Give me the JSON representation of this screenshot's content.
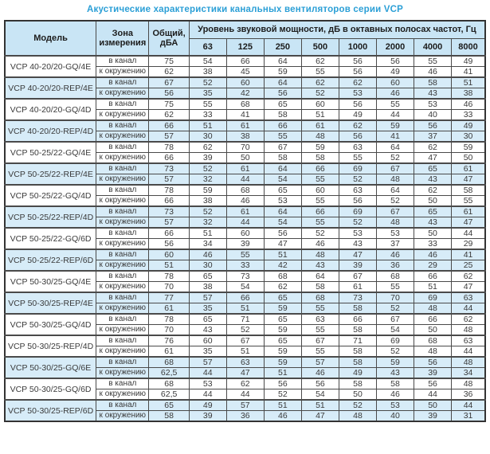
{
  "title": "Акустические характеристики канальных вентиляторов  серии VCP",
  "table": {
    "headers": {
      "model": "Модель",
      "zone": "Зона\nизмерения",
      "total": "Общий,\nдБА",
      "band_group": "Уровень звуковой мощности, дБ в октавных полосах частот, Гц",
      "frequencies": [
        "63",
        "125",
        "250",
        "500",
        "1000",
        "2000",
        "4000",
        "8000"
      ]
    },
    "zone_labels": {
      "duct": "в канал",
      "ambient": "к окружению"
    },
    "rows": [
      {
        "model": "VCP 40-20/20-GQ/4E",
        "highlighted": false,
        "duct": {
          "total": "75",
          "bands": [
            "54",
            "66",
            "64",
            "62",
            "56",
            "56",
            "55",
            "49"
          ]
        },
        "ambient": {
          "total": "62",
          "bands": [
            "38",
            "45",
            "59",
            "55",
            "56",
            "49",
            "46",
            "41"
          ]
        }
      },
      {
        "model": "VCP 40-20/20-REP/4E",
        "highlighted": true,
        "duct": {
          "total": "67",
          "bands": [
            "52",
            "60",
            "64",
            "62",
            "62",
            "60",
            "58",
            "51"
          ]
        },
        "ambient": {
          "total": "56",
          "bands": [
            "35",
            "42",
            "56",
            "52",
            "53",
            "46",
            "43",
            "38"
          ]
        }
      },
      {
        "model": "VCP 40-20/20-GQ/4D",
        "highlighted": false,
        "duct": {
          "total": "75",
          "bands": [
            "55",
            "68",
            "65",
            "60",
            "56",
            "55",
            "53",
            "46"
          ]
        },
        "ambient": {
          "total": "62",
          "bands": [
            "33",
            "41",
            "58",
            "51",
            "49",
            "44",
            "40",
            "33"
          ]
        }
      },
      {
        "model": "VCP 40-20/20-REP/4D",
        "highlighted": true,
        "duct": {
          "total": "66",
          "bands": [
            "51",
            "61",
            "66",
            "61",
            "62",
            "59",
            "56",
            "49"
          ]
        },
        "ambient": {
          "total": "57",
          "bands": [
            "30",
            "38",
            "55",
            "48",
            "56",
            "41",
            "37",
            "30"
          ]
        }
      },
      {
        "model": "VCP 50-25/22-GQ/4E",
        "highlighted": false,
        "duct": {
          "total": "78",
          "bands": [
            "62",
            "70",
            "67",
            "59",
            "63",
            "64",
            "62",
            "59"
          ]
        },
        "ambient": {
          "total": "66",
          "bands": [
            "39",
            "50",
            "58",
            "58",
            "55",
            "52",
            "47",
            "50"
          ]
        }
      },
      {
        "model": "VCP 50-25/22-REP/4E",
        "highlighted": true,
        "duct": {
          "total": "73",
          "bands": [
            "52",
            "61",
            "64",
            "66",
            "69",
            "67",
            "65",
            "61"
          ]
        },
        "ambient": {
          "total": "57",
          "bands": [
            "32",
            "44",
            "54",
            "55",
            "52",
            "48",
            "43",
            "47"
          ]
        }
      },
      {
        "model": "VCP 50-25/22-GQ/4D",
        "highlighted": false,
        "duct": {
          "total": "78",
          "bands": [
            "59",
            "68",
            "65",
            "60",
            "63",
            "64",
            "62",
            "58"
          ]
        },
        "ambient": {
          "total": "66",
          "bands": [
            "38",
            "46",
            "53",
            "55",
            "56",
            "52",
            "50",
            "55"
          ]
        }
      },
      {
        "model": "VCP 50-25/22-REP/4D",
        "highlighted": true,
        "duct": {
          "total": "73",
          "bands": [
            "52",
            "61",
            "64",
            "66",
            "69",
            "67",
            "65",
            "61"
          ]
        },
        "ambient": {
          "total": "57",
          "bands": [
            "32",
            "44",
            "54",
            "55",
            "52",
            "48",
            "43",
            "47"
          ]
        }
      },
      {
        "model": "VCP 50-25/22-GQ/6D",
        "highlighted": false,
        "duct": {
          "total": "66",
          "bands": [
            "51",
            "60",
            "56",
            "52",
            "53",
            "53",
            "50",
            "44"
          ]
        },
        "ambient": {
          "total": "56",
          "bands": [
            "34",
            "39",
            "47",
            "46",
            "43",
            "37",
            "33",
            "29"
          ]
        }
      },
      {
        "model": "VCP 50-25/22-REP/6D",
        "highlighted": true,
        "duct": {
          "total": "60",
          "bands": [
            "46",
            "55",
            "51",
            "48",
            "47",
            "46",
            "46",
            "41"
          ]
        },
        "ambient": {
          "total": "51",
          "bands": [
            "30",
            "33",
            "42",
            "43",
            "39",
            "36",
            "29",
            "25"
          ]
        }
      },
      {
        "model": "VCP 50-30/25-GQ/4E",
        "highlighted": false,
        "duct": {
          "total": "78",
          "bands": [
            "65",
            "73",
            "68",
            "64",
            "67",
            "68",
            "66",
            "62"
          ]
        },
        "ambient": {
          "total": "70",
          "bands": [
            "38",
            "54",
            "62",
            "58",
            "61",
            "55",
            "51",
            "47"
          ]
        }
      },
      {
        "model": "VCP 50-30/25-REP/4E",
        "highlighted": true,
        "duct": {
          "total": "77",
          "bands": [
            "57",
            "66",
            "65",
            "68",
            "73",
            "70",
            "69",
            "63"
          ]
        },
        "ambient": {
          "total": "61",
          "bands": [
            "35",
            "51",
            "59",
            "55",
            "58",
            "52",
            "48",
            "44"
          ]
        }
      },
      {
        "model": "VCP 50-30/25-GQ/4D",
        "highlighted": false,
        "duct": {
          "total": "78",
          "bands": [
            "65",
            "71",
            "65",
            "63",
            "66",
            "67",
            "66",
            "62"
          ]
        },
        "ambient": {
          "total": "70",
          "bands": [
            "43",
            "52",
            "59",
            "55",
            "58",
            "54",
            "50",
            "48"
          ]
        }
      },
      {
        "model": "VCP 50-30/25-REP/4D",
        "highlighted": false,
        "duct": {
          "total": "76",
          "bands": [
            "60",
            "67",
            "65",
            "67",
            "71",
            "69",
            "68",
            "63"
          ]
        },
        "ambient": {
          "total": "61",
          "bands": [
            "35",
            "51",
            "59",
            "55",
            "58",
            "52",
            "48",
            "44"
          ]
        }
      },
      {
        "model": "VCP 50-30/25-GQ/6E",
        "highlighted": true,
        "duct": {
          "total": "68",
          "bands": [
            "57",
            "63",
            "59",
            "57",
            "58",
            "59",
            "56",
            "48"
          ]
        },
        "ambient": {
          "total": "62,5",
          "bands": [
            "44",
            "47",
            "51",
            "46",
            "49",
            "43",
            "39",
            "34"
          ]
        }
      },
      {
        "model": "VCP 50-30/25-GQ/6D",
        "highlighted": false,
        "duct": {
          "total": "68",
          "bands": [
            "53",
            "62",
            "56",
            "56",
            "58",
            "58",
            "56",
            "48"
          ]
        },
        "ambient": {
          "total": "62,5",
          "bands": [
            "44",
            "44",
            "52",
            "54",
            "50",
            "46",
            "44",
            "36"
          ]
        }
      },
      {
        "model": "VCP 50-30/25-REP/6D",
        "highlighted": true,
        "duct": {
          "total": "65",
          "bands": [
            "49",
            "57",
            "51",
            "51",
            "52",
            "53",
            "50",
            "44"
          ]
        },
        "ambient": {
          "total": "58",
          "bands": [
            "39",
            "36",
            "46",
            "47",
            "48",
            "40",
            "39",
            "31"
          ]
        }
      }
    ]
  },
  "colors": {
    "title_accent": "#2b9fd6",
    "header_bg": "#c9e5f5",
    "row_highlight_bg": "#d7ecf8",
    "border": "#4a4a4a",
    "text": "#3a3a3a"
  }
}
